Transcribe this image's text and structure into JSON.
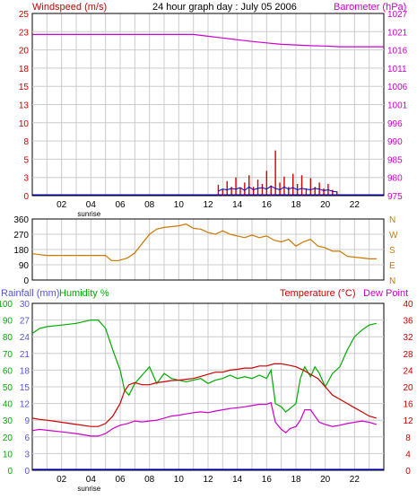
{
  "title": "24 hour graph day : July 05 2006",
  "colors": {
    "wind": "#cc0000",
    "gust": "#0000cc",
    "barometer": "#cc00cc",
    "direction": "#cc7700",
    "rain": "#0000cc",
    "humidity": "#00aa00",
    "temperature": "#cc0000",
    "dewpoint": "#cc00cc",
    "frame": "#000000",
    "grid": "#cccccc"
  },
  "x_ticks": [
    "02",
    "04",
    "06",
    "08",
    "10",
    "12",
    "14",
    "16",
    "18",
    "20",
    "22"
  ],
  "sunrise_label": "sunrise",
  "chart_data": [
    {
      "type": "line",
      "name": "wind-barometer",
      "left_axis_label": "Windspeed (m/s)",
      "right_axis_label": "Barometer (hPa)",
      "left_ticks": [
        "0",
        "3",
        "5",
        "8",
        "10",
        "13",
        "15",
        "18",
        "20",
        "23",
        "25"
      ],
      "right_ticks": [
        "975",
        "980",
        "985",
        "990",
        "996",
        "1001",
        "1006",
        "1011",
        "1016",
        "1021",
        "1027"
      ],
      "ylim_left": [
        0,
        25
      ],
      "ylim_right": [
        975,
        1027
      ],
      "x_range": [
        0,
        24
      ],
      "series": [
        {
          "name": "Barometer",
          "axis": "right",
          "x": [
            0,
            1,
            2,
            3,
            4,
            5,
            6,
            7,
            8,
            9,
            10,
            11,
            12,
            13,
            14,
            15,
            16,
            17,
            18,
            19,
            20,
            21,
            22,
            23,
            24
          ],
          "y": [
            1021,
            1021,
            1021,
            1021,
            1021,
            1021,
            1021,
            1021,
            1021,
            1021,
            1021,
            1021,
            1020.5,
            1020,
            1019.5,
            1019,
            1018.6,
            1018.2,
            1018,
            1017.8,
            1017.7,
            1017.5,
            1017.5,
            1017.5,
            1017.5
          ]
        },
        {
          "name": "Windspeed",
          "axis": "left",
          "x": [
            12.7,
            13.0,
            13.3,
            13.6,
            13.9,
            14.2,
            14.5,
            14.8,
            15.1,
            15.4,
            15.7,
            16.0,
            16.3,
            16.6,
            16.9,
            17.2,
            17.5,
            17.8,
            18.1,
            18.4,
            18.7,
            19.0,
            19.3,
            19.6,
            19.9,
            20.2,
            20.5,
            20.8
          ],
          "y": [
            1.5,
            0.8,
            2.0,
            1.2,
            2.5,
            1.0,
            1.8,
            2.8,
            1.2,
            2.2,
            1.6,
            3.4,
            1.4,
            6.2,
            1.8,
            2.6,
            1.2,
            3.0,
            1.6,
            2.8,
            1.0,
            2.4,
            1.2,
            1.8,
            1.0,
            1.6,
            0.8,
            0.6
          ]
        },
        {
          "name": "Gust",
          "axis": "left",
          "x": [
            12.7,
            13.0,
            13.3,
            13.6,
            13.9,
            14.2,
            14.5,
            14.8,
            15.1,
            15.4,
            15.7,
            16.0,
            16.3,
            16.6,
            16.9,
            17.2,
            17.5,
            17.8,
            18.1,
            18.4,
            18.7,
            19.0,
            19.3,
            19.6,
            19.9,
            20.2,
            20.5,
            20.8
          ],
          "y": [
            0.6,
            0.9,
            0.8,
            1.0,
            0.9,
            1.1,
            0.7,
            1.2,
            0.8,
            1.0,
            1.1,
            0.9,
            1.3,
            1.0,
            0.8,
            1.2,
            0.9,
            1.1,
            0.8,
            1.0,
            0.9,
            0.8,
            1.0,
            0.9,
            0.7,
            0.8,
            0.6,
            0.5
          ]
        }
      ]
    },
    {
      "type": "line",
      "name": "wind-direction",
      "left_ticks": [
        "0",
        "90",
        "180",
        "270",
        "360"
      ],
      "right_ticks": [
        "N",
        "E",
        "S",
        "W",
        "N"
      ],
      "ylim": [
        0,
        360
      ],
      "x_range": [
        0,
        24
      ],
      "series": [
        {
          "name": "Wind direction",
          "x": [
            0,
            0.5,
            1,
            2,
            3,
            4,
            5,
            5.4,
            5.9,
            6.5,
            7,
            7.5,
            8,
            8.5,
            9,
            9.5,
            10,
            10.5,
            11,
            11.5,
            12,
            12.5,
            13,
            13.5,
            14,
            14.5,
            15,
            15.5,
            16,
            16.5,
            17,
            17.5,
            18,
            18.5,
            19,
            19.5,
            20,
            20.5,
            21,
            21.5,
            22,
            22.5,
            23,
            23.5
          ],
          "y": [
            155,
            150,
            145,
            145,
            145,
            145,
            145,
            115,
            115,
            130,
            160,
            215,
            270,
            300,
            310,
            315,
            320,
            330,
            305,
            300,
            280,
            270,
            290,
            270,
            260,
            250,
            265,
            250,
            260,
            235,
            225,
            240,
            200,
            225,
            240,
            200,
            190,
            170,
            170,
            140,
            135,
            130,
            125,
            125
          ]
        }
      ]
    },
    {
      "type": "line",
      "name": "rain-humidity-temperature",
      "rain_axis_label": "Rainfall (mm)",
      "humidity_axis_label": "Humidity %",
      "temperature_axis_label": "Temperature (°C)",
      "dewpoint_axis_label": "Dew Point",
      "rain_ticks": [
        "0",
        "3",
        "6",
        "9",
        "12",
        "15",
        "18",
        "21",
        "24",
        "27",
        "30"
      ],
      "humidity_ticks": [
        "0",
        "10",
        "20",
        "30",
        "40",
        "50",
        "60",
        "70",
        "80",
        "90",
        "100"
      ],
      "temp_ticks": [
        "0",
        "4",
        "8",
        "12",
        "16",
        "20",
        "24",
        "28",
        "32",
        "36",
        "40"
      ],
      "ylim_rain": [
        0,
        30
      ],
      "ylim_humidity": [
        0,
        100
      ],
      "ylim_temp": [
        0,
        40
      ],
      "x_range": [
        0,
        24
      ],
      "series": [
        {
          "name": "Humidity",
          "axis": "humidity",
          "x": [
            0,
            0.5,
            1,
            2,
            3,
            4,
            4.5,
            5,
            5.5,
            6,
            6.3,
            6.6,
            7,
            7.3,
            7.6,
            8,
            8.5,
            9,
            9.5,
            10,
            10.5,
            11,
            11.5,
            12,
            12.5,
            13,
            13.5,
            14,
            14.5,
            15,
            15.5,
            16,
            16.3,
            16.6,
            17,
            17.3,
            17.6,
            18,
            18.3,
            18.6,
            19,
            19.3,
            19.6,
            20,
            20.5,
            21,
            21.5,
            22,
            22.5,
            23,
            23.5
          ],
          "y": [
            82,
            85,
            86,
            87,
            88,
            90,
            90,
            85,
            72,
            60,
            48,
            45,
            52,
            55,
            58,
            62,
            52,
            58,
            55,
            54,
            53,
            54,
            55,
            52,
            54,
            55,
            57,
            55,
            56,
            55,
            57,
            55,
            60,
            40,
            38,
            35,
            37,
            40,
            55,
            62,
            56,
            62,
            58,
            50,
            58,
            62,
            72,
            80,
            84,
            87,
            88
          ]
        },
        {
          "name": "Temperature",
          "axis": "temp",
          "x": [
            0,
            0.5,
            1,
            2,
            3,
            4,
            4.5,
            5,
            5.5,
            6,
            6.3,
            6.6,
            7,
            7.5,
            8,
            8.5,
            9,
            9.5,
            10,
            10.5,
            11,
            11.5,
            12,
            12.5,
            13,
            13.5,
            14,
            14.5,
            15,
            15.5,
            16,
            16.5,
            17,
            17.5,
            18,
            18.5,
            19,
            19.5,
            20,
            20.5,
            21,
            21.5,
            22,
            22.5,
            23,
            23.5
          ],
          "y": [
            12.5,
            12.2,
            12.0,
            11.5,
            11.0,
            10.5,
            10.5,
            11.2,
            13,
            16,
            19,
            20.5,
            21,
            20.5,
            20.5,
            21,
            21.2,
            21.5,
            21.6,
            21.8,
            22,
            22.5,
            23,
            23.5,
            23.5,
            24,
            24.2,
            24.5,
            24.5,
            25,
            25,
            25.5,
            25.5,
            25.2,
            24.8,
            24,
            23,
            22,
            20,
            18,
            17,
            16,
            15,
            14,
            13,
            12.5
          ]
        },
        {
          "name": "Dew Point",
          "axis": "temp",
          "x": [
            0,
            0.5,
            1,
            2,
            3,
            4,
            4.5,
            5,
            5.5,
            6,
            6.5,
            7,
            7.5,
            8,
            8.5,
            9,
            9.5,
            10,
            10.5,
            11,
            11.5,
            12,
            12.5,
            13,
            13.5,
            14,
            14.5,
            15,
            15.5,
            16,
            16.3,
            16.6,
            17,
            17.3,
            17.6,
            18,
            18.3,
            18.6,
            19,
            19.3,
            19.6,
            20,
            20.5,
            21,
            21.5,
            22,
            22.5,
            23,
            23.5
          ],
          "y": [
            9.5,
            9.8,
            9.6,
            9.2,
            8.8,
            8.2,
            8.2,
            8.8,
            10,
            10.8,
            11.2,
            11.8,
            11.6,
            11.8,
            12,
            12.5,
            13,
            13.2,
            13.5,
            13.8,
            14,
            13.8,
            14.2,
            14.5,
            14.8,
            15,
            15.2,
            15.5,
            15.8,
            15.8,
            16.2,
            11.5,
            9.8,
            9,
            10,
            10.5,
            12,
            14.5,
            14.5,
            13,
            11.5,
            11,
            10.5,
            10.8,
            11.2,
            11.5,
            11.8,
            11.5,
            11
          ]
        },
        {
          "name": "Rainfall",
          "axis": "rain",
          "x": [
            0,
            24
          ],
          "y": [
            0,
            0
          ]
        }
      ]
    }
  ]
}
